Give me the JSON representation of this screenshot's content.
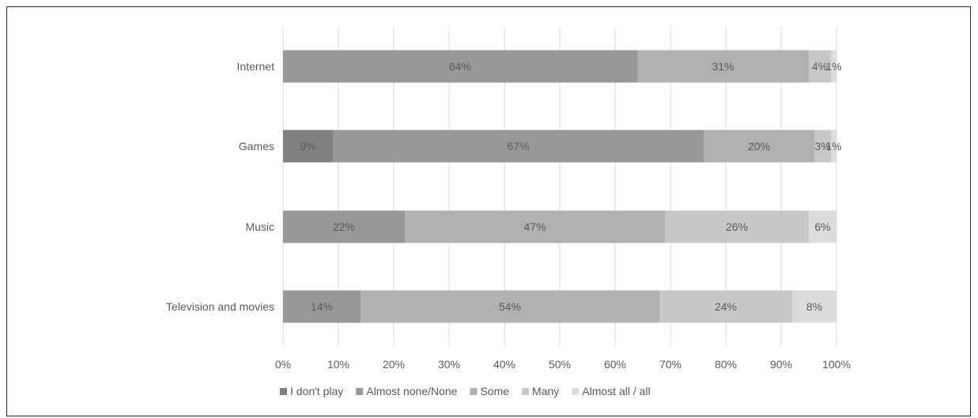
{
  "chart_data": {
    "type": "bar",
    "orientation": "horizontal",
    "stacked": true,
    "title": "",
    "xlabel": "",
    "ylabel": "",
    "xlim": [
      0,
      100
    ],
    "x_ticks": [
      "0%",
      "10%",
      "20%",
      "30%",
      "40%",
      "50%",
      "60%",
      "70%",
      "80%",
      "90%",
      "100%"
    ],
    "grid": "vertical",
    "legend_position": "bottom",
    "categories": [
      "Internet",
      "Games",
      "Music",
      "Television and movies"
    ],
    "series": [
      {
        "name": "I don't play",
        "color": "#808080",
        "values": [
          0,
          9,
          0,
          0
        ],
        "labels": [
          "",
          "9%",
          "",
          ""
        ]
      },
      {
        "name": "Almost none/None",
        "color": "#989898",
        "values": [
          64,
          67,
          22,
          14
        ],
        "labels": [
          "64%",
          "67%",
          "22%",
          "14%"
        ]
      },
      {
        "name": "Some",
        "color": "#b0b0b0",
        "values": [
          31,
          20,
          47,
          54
        ],
        "labels": [
          "31%",
          "20%",
          "47%",
          "54%"
        ]
      },
      {
        "name": "Many",
        "color": "#c8c8c8",
        "values": [
          4,
          3,
          26,
          24
        ],
        "labels": [
          "4%",
          "3%",
          "26%",
          "24%"
        ]
      },
      {
        "name": "Almost all / all",
        "color": "#dcdcdc",
        "values": [
          1,
          1,
          6,
          8
        ],
        "labels": [
          "1%",
          "1%",
          "6%",
          "8%"
        ]
      }
    ]
  }
}
